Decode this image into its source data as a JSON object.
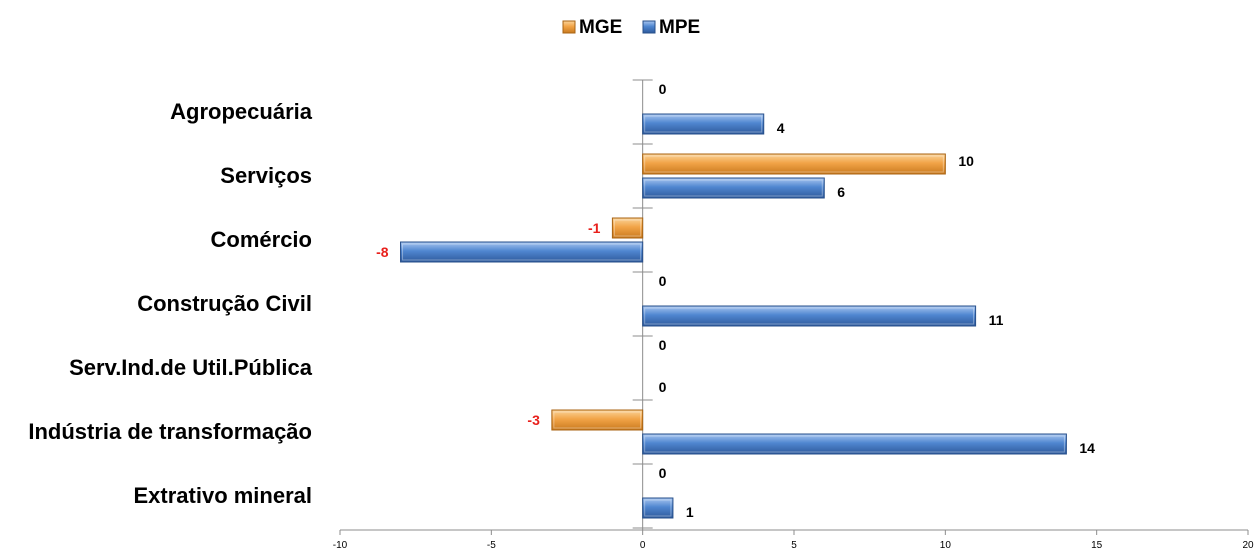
{
  "chart_data": {
    "type": "bar",
    "orientation": "horizontal",
    "categories": [
      "Agropecuária",
      "Serviços",
      "Comércio",
      "Construção Civil",
      "Serv.Ind.de Util.Pública",
      "Indústria de transformação",
      "Extrativo mineral"
    ],
    "series": [
      {
        "name": "MGE",
        "values": [
          0,
          10,
          -1,
          0,
          0,
          -3,
          0
        ],
        "color": "#f0a040"
      },
      {
        "name": "MPE",
        "values": [
          4,
          6,
          -8,
          11,
          0,
          14,
          1
        ],
        "color": "#4a7fcb"
      }
    ],
    "xlim": [
      -10,
      20
    ],
    "xticks": [
      "-10",
      "-5",
      "0",
      "5",
      "10",
      "15",
      "20"
    ],
    "legend_position": "top-center",
    "negative_label_color": "#e8201c",
    "positive_label_color": "#000000",
    "grid": false
  }
}
